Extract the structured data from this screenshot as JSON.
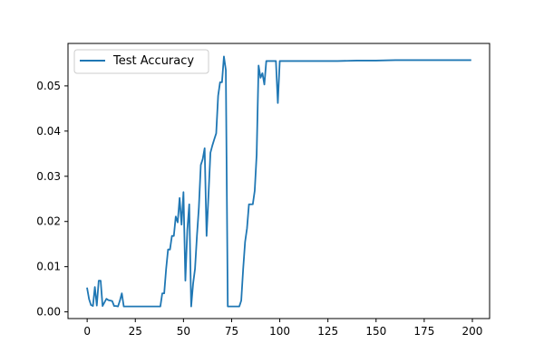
{
  "chart_data": {
    "type": "line",
    "title": "",
    "xlabel": "",
    "ylabel": "",
    "xlim": [
      -9.95,
      208.95
    ],
    "ylim": [
      -0.00148,
      0.05939
    ],
    "xticks": [
      0,
      25,
      50,
      75,
      100,
      125,
      150,
      175,
      200
    ],
    "yticks": [
      0.0,
      0.01,
      0.02,
      0.03,
      0.04,
      0.05
    ],
    "ytick_labels": [
      "0.00",
      "0.01",
      "0.02",
      "0.03",
      "0.04",
      "0.05"
    ],
    "grid": false,
    "legend": {
      "position": "top-left"
    },
    "color": "#1f77b4",
    "series": [
      {
        "name": "Test Accuracy",
        "x": [
          0,
          1,
          2,
          3,
          4,
          5,
          6,
          7,
          8,
          9,
          10,
          11,
          12,
          13,
          14,
          15,
          16,
          17,
          18,
          19,
          20,
          21,
          22,
          23,
          24,
          25,
          26,
          27,
          28,
          29,
          30,
          31,
          32,
          33,
          34,
          35,
          36,
          37,
          38,
          39,
          40,
          41,
          42,
          43,
          44,
          45,
          46,
          47,
          48,
          49,
          50,
          51,
          52,
          53,
          54,
          55,
          56,
          57,
          58,
          59,
          60,
          61,
          62,
          63,
          64,
          65,
          66,
          67,
          68,
          69,
          70,
          71,
          72,
          73,
          74,
          75,
          76,
          77,
          78,
          79,
          80,
          81,
          82,
          83,
          84,
          85,
          86,
          87,
          88,
          89,
          90,
          91,
          92,
          93,
          94,
          95,
          96,
          97,
          98,
          99,
          100,
          110,
          120,
          130,
          140,
          150,
          160,
          170,
          180,
          190,
          199
        ],
        "y": [
          0.0052,
          0.0028,
          0.0015,
          0.0013,
          0.0055,
          0.0014,
          0.0069,
          0.0069,
          0.0013,
          0.0021,
          0.0029,
          0.0026,
          0.0025,
          0.0024,
          0.0013,
          0.0013,
          0.0012,
          0.0025,
          0.0041,
          0.0012,
          0.0012,
          0.0012,
          0.0012,
          0.0012,
          0.0012,
          0.0012,
          0.0012,
          0.0012,
          0.0012,
          0.0012,
          0.0012,
          0.0012,
          0.0012,
          0.0012,
          0.0012,
          0.0012,
          0.0012,
          0.0012,
          0.0012,
          0.0041,
          0.0041,
          0.0095,
          0.0138,
          0.0138,
          0.0168,
          0.0168,
          0.0211,
          0.0198,
          0.0252,
          0.0193,
          0.0265,
          0.0069,
          0.0181,
          0.0238,
          0.0012,
          0.0062,
          0.0095,
          0.0168,
          0.0231,
          0.0325,
          0.0338,
          0.0362,
          0.0168,
          0.0258,
          0.0352,
          0.0368,
          0.0382,
          0.0395,
          0.0478,
          0.0508,
          0.0508,
          0.0565,
          0.0535,
          0.0012,
          0.0012,
          0.0012,
          0.0012,
          0.0012,
          0.0012,
          0.0012,
          0.0025,
          0.0095,
          0.0155,
          0.0185,
          0.0238,
          0.0238,
          0.0238,
          0.0268,
          0.0348,
          0.0545,
          0.0518,
          0.0528,
          0.0503,
          0.0555,
          0.0555,
          0.0555,
          0.0555,
          0.0555,
          0.0555,
          0.0462,
          0.0555,
          0.0555,
          0.0555,
          0.0555,
          0.0556,
          0.0556,
          0.0557,
          0.0557,
          0.0557,
          0.0557,
          0.0557
        ]
      }
    ]
  }
}
